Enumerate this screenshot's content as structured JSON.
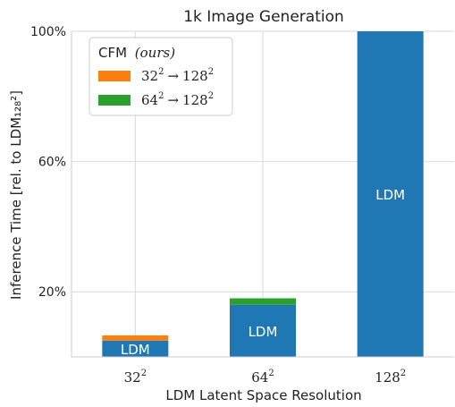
{
  "chart_data": {
    "type": "bar",
    "stacked": true,
    "title": "1k Image Generation",
    "xlabel": "LDM Latent Space Resolution",
    "ylabel": "Inference Time [rel. to LDM₁₂₈²]",
    "categories": [
      {
        "base": "32",
        "exp": "2"
      },
      {
        "base": "64",
        "exp": "2"
      },
      {
        "base": "128",
        "exp": "2"
      }
    ],
    "ylim": [
      0,
      100
    ],
    "yticks": [
      20,
      60,
      100
    ],
    "ytick_labels": [
      "20%",
      "60%",
      "100%"
    ],
    "grid": true,
    "series": [
      {
        "name": "LDM",
        "color": "#1f77b4",
        "values": [
          5,
          16,
          100
        ],
        "bar_label": "LDM"
      },
      {
        "name": "32² → 128²",
        "color": "#ff7f0e",
        "values": [
          1.6,
          0,
          0
        ]
      },
      {
        "name": "64² → 128²",
        "color": "#2ca02c",
        "values": [
          0,
          2,
          0
        ]
      }
    ],
    "legend": {
      "position": "top-left",
      "title_prefix": "CFM",
      "title_suffix": "(ours)",
      "entries": [
        {
          "color": "#ff7f0e",
          "from_base": "32",
          "to_base": "128",
          "exp": "2",
          "arrow": "→"
        },
        {
          "color": "#2ca02c",
          "from_base": "64",
          "to_base": "128",
          "exp": "2",
          "arrow": "→"
        }
      ]
    }
  }
}
